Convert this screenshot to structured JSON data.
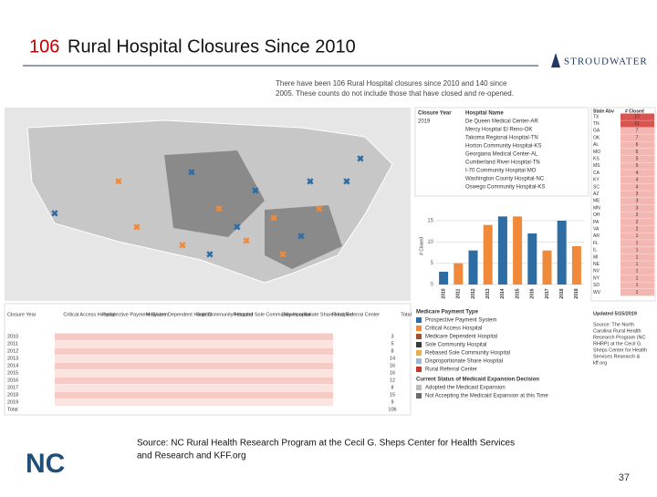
{
  "header": {
    "title_number": "106",
    "title_rest": "Rural Hospital Closures Since 2010",
    "logo": "STROUDWATER"
  },
  "dashboard": {
    "intro": [
      "There have been 106 Rural Hospital closures since 2010 and 140 since",
      "2005. These counts do not include those that have closed and re-opened."
    ],
    "list": {
      "columns": [
        "Closure Year",
        "Hospital Name"
      ],
      "year": "2019",
      "hospitals": [
        "De Queen Medical Center-AR",
        "Mercy Hospital El Reno-OK",
        "Takoma Regional Hospital-TN",
        "Horton Community Hospital-KS",
        "Georgiana Medical Center-AL",
        "Cumberland River Hospital-TN",
        "I-70 Community Hospital-MO",
        "Washington County Hospital-NC",
        "Oswego Community Hospital-KS"
      ]
    },
    "states": {
      "columns": [
        "State Abv",
        "# Closed"
      ],
      "rows": [
        [
          "TX",
          "17"
        ],
        [
          "TN",
          "11"
        ],
        [
          "GA",
          "7"
        ],
        [
          "OK",
          "7"
        ],
        [
          "AL",
          "6"
        ],
        [
          "MO",
          "6"
        ],
        [
          "KS",
          "5"
        ],
        [
          "MS",
          "5"
        ],
        [
          "CA",
          "4"
        ],
        [
          "KY",
          "4"
        ],
        [
          "SC",
          "4"
        ],
        [
          "AZ",
          "3"
        ],
        [
          "ME",
          "3"
        ],
        [
          "MN",
          "3"
        ],
        [
          "OH",
          "2"
        ],
        [
          "PA",
          "2"
        ],
        [
          "VA",
          "2"
        ],
        [
          "AR",
          "1"
        ],
        [
          "FL",
          "1"
        ],
        [
          "IL",
          "1"
        ],
        [
          "MI",
          "1"
        ],
        [
          "NE",
          "1"
        ],
        [
          "NV",
          "1"
        ],
        [
          "NY",
          "1"
        ],
        [
          "SD",
          "1"
        ],
        [
          "WV",
          "1"
        ]
      ]
    },
    "chart": {
      "type": "bar",
      "ylabel": "# Closed",
      "ylim": [
        0,
        18
      ],
      "yticks": [
        0,
        5,
        10,
        15
      ]
    },
    "table": {
      "columns": [
        "Closure Year",
        "Critical Access Hospital",
        "Prospective Payment System",
        "Medicare Dependent Hospital",
        "Sole Community Hospital",
        "Rebased Sole Community Hospital",
        "Disproportionate Share Hospital",
        "Rural Referral Center",
        "Total"
      ],
      "years": [
        2010,
        2011,
        2012,
        2013,
        2014,
        2015,
        2016,
        2017,
        2018,
        2019
      ],
      "totals": [
        3,
        5,
        8,
        14,
        16,
        16,
        12,
        8,
        15,
        9
      ],
      "total_label": "Total",
      "grand_total": "106"
    },
    "legend": {
      "title": "Medicare Payment Type",
      "items": [
        {
          "name": "Prospective Payment System",
          "color": "#2e6da4"
        },
        {
          "name": "Critical Access Hospital",
          "color": "#f08a3a"
        },
        {
          "name": "Medicare Dependent Hospital",
          "color": "#a0522d"
        },
        {
          "name": "Sole Community Hospital",
          "color": "#3a3a3a"
        },
        {
          "name": "Rebased Sole Community Hospital",
          "color": "#e8b04a"
        },
        {
          "name": "Disproportionate Share Hospital",
          "color": "#9fb8d6"
        },
        {
          "name": "Rural Referral Center",
          "color": "#c0392b"
        }
      ],
      "status_title": "Current Status of Medicaid Expansion Decision",
      "status": [
        {
          "name": "Adopted the Medicaid Expansion",
          "color": "#bdbdbd"
        },
        {
          "name": "Not Accepting the Medicaid Expansion at this Time",
          "color": "#6b6b6b"
        }
      ]
    },
    "updated": "Updated 5/15/2019",
    "side_source": [
      "Source: The North",
      "Carolina Rural Health",
      "Research Program (NC",
      "RHRP) at the Cecil G.",
      "Sheps Center for Health",
      "Services Research &",
      "kff.org"
    ]
  },
  "source": [
    "Source: NC Rural Health Research Program at the Cecil G. Sheps Center for Health Services",
    "and Research and KFF.org"
  ],
  "page_number": "37"
}
